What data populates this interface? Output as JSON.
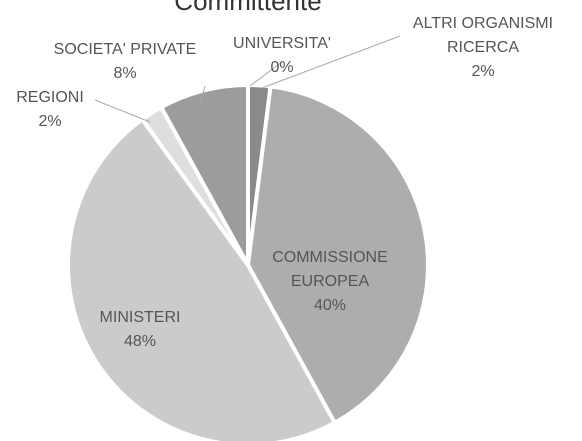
{
  "chart_data": {
    "type": "pie",
    "title": "Committente",
    "categories": [
      "ALTRI ORGANISMI RICERCA",
      "COMMISSIONE EUROPEA",
      "MINISTERI",
      "REGIONI",
      "SOCIETA' PRIVATE",
      "UNIVERSITA'"
    ],
    "values": [
      2,
      40,
      48,
      2,
      8,
      0
    ],
    "value_labels": [
      "2%",
      "40%",
      "48%",
      "2%",
      "8%",
      "0%"
    ],
    "colors": [
      "#8a8a8a",
      "#adadad",
      "#cbcbcb",
      "#dedede",
      "#9c9c9c",
      "#7a7a7a"
    ]
  }
}
